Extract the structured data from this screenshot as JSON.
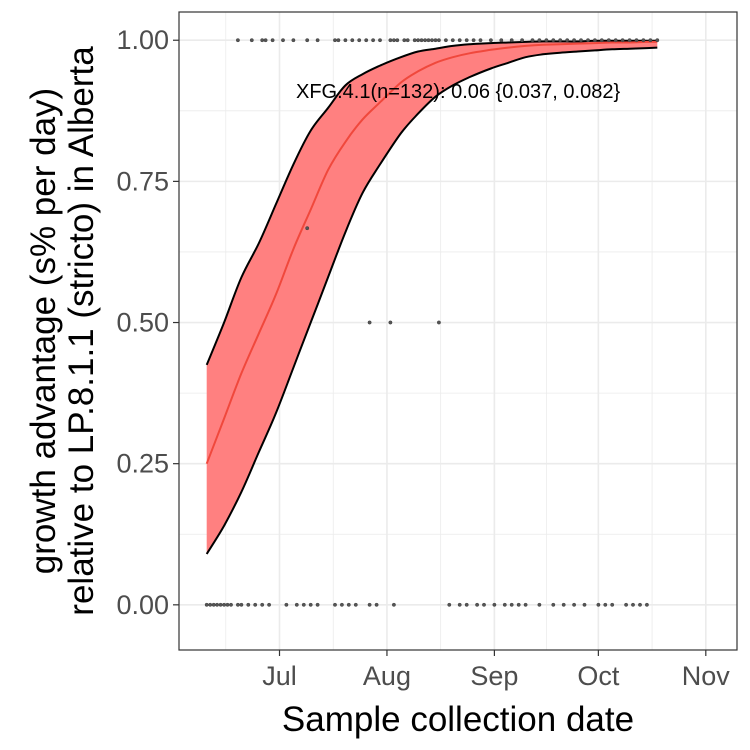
{
  "chart_data": {
    "type": "line",
    "xlabel": "Sample collection date",
    "ylabel_lines": [
      "growth advantage (s% per day)",
      "relative to LP.8.1.1 (stricto) in Alberta"
    ],
    "annotation": "XFG.4.1(n=132): 0.06 {0.037, 0.082}",
    "x_ticks": [
      {
        "label": "Jul",
        "date": "2025-07-01"
      },
      {
        "label": "Aug",
        "date": "2025-08-01"
      },
      {
        "label": "Sep",
        "date": "2025-09-01"
      },
      {
        "label": "Oct",
        "date": "2025-10-01"
      },
      {
        "label": "Nov",
        "date": "2025-11-01"
      }
    ],
    "xlim": [
      "2025-06-02",
      "2025-11-10"
    ],
    "ylim": [
      -0.08,
      1.05
    ],
    "y_ticks": [
      0.0,
      0.25,
      0.5,
      0.75,
      1.0
    ],
    "y_tick_labels": [
      "0.00",
      "0.25",
      "0.50",
      "0.75",
      "1.00"
    ],
    "grid": true,
    "legend": "none",
    "colors": {
      "fit": "#f0483c",
      "ribbon": "#ff8080",
      "ribbon_edge": "#000000",
      "points": "#555555",
      "grid": "#ebebeb"
    },
    "series": [
      {
        "x": [
          "2025-06-10",
          "2025-06-15",
          "2025-06-20",
          "2025-06-25",
          "2025-06-30",
          "2025-07-05",
          "2025-07-10",
          "2025-07-15",
          "2025-07-20",
          "2025-07-25",
          "2025-07-30",
          "2025-08-05",
          "2025-08-10",
          "2025-08-15",
          "2025-08-20",
          "2025-08-25",
          "2025-08-31",
          "2025-09-05",
          "2025-09-10",
          "2025-09-15",
          "2025-09-20",
          "2025-09-25",
          "2025-09-30",
          "2025-10-05",
          "2025-10-10",
          "2025-10-15",
          "2025-10-18"
        ],
        "fit": [
          0.25,
          0.33,
          0.41,
          0.48,
          0.55,
          0.63,
          0.7,
          0.77,
          0.82,
          0.86,
          0.89,
          0.925,
          0.945,
          0.96,
          0.97,
          0.977,
          0.983,
          0.987,
          0.99,
          0.992,
          0.993,
          0.994,
          0.995,
          0.996,
          0.996,
          0.997,
          0.997
        ],
        "upper": [
          0.425,
          0.5,
          0.58,
          0.64,
          0.71,
          0.78,
          0.84,
          0.88,
          0.92,
          0.94,
          0.955,
          0.97,
          0.98,
          0.985,
          0.99,
          0.993,
          0.995,
          0.996,
          0.997,
          0.998,
          0.998,
          0.998,
          0.999,
          0.999,
          0.999,
          0.999,
          0.999
        ],
        "lower": [
          0.09,
          0.14,
          0.2,
          0.27,
          0.34,
          0.42,
          0.5,
          0.58,
          0.66,
          0.73,
          0.78,
          0.835,
          0.87,
          0.9,
          0.92,
          0.935,
          0.95,
          0.96,
          0.97,
          0.975,
          0.978,
          0.98,
          0.982,
          0.984,
          0.985,
          0.986,
          0.987
        ]
      }
    ],
    "points": [
      {
        "date": "2025-06-19",
        "y": 1
      },
      {
        "date": "2025-06-23",
        "y": 1
      },
      {
        "date": "2025-06-26",
        "y": 1
      },
      {
        "date": "2025-06-27",
        "y": 1
      },
      {
        "date": "2025-06-29",
        "y": 1
      },
      {
        "date": "2025-07-02",
        "y": 1
      },
      {
        "date": "2025-07-05",
        "y": 1
      },
      {
        "date": "2025-07-09",
        "y": 1
      },
      {
        "date": "2025-07-12",
        "y": 1
      },
      {
        "date": "2025-07-17",
        "y": 1
      },
      {
        "date": "2025-07-18",
        "y": 1
      },
      {
        "date": "2025-07-20",
        "y": 1
      },
      {
        "date": "2025-07-22",
        "y": 1
      },
      {
        "date": "2025-07-24",
        "y": 1
      },
      {
        "date": "2025-07-26",
        "y": 1
      },
      {
        "date": "2025-07-28",
        "y": 1
      },
      {
        "date": "2025-07-30",
        "y": 1
      },
      {
        "date": "2025-08-02",
        "y": 1
      },
      {
        "date": "2025-08-03",
        "y": 1
      },
      {
        "date": "2025-08-04",
        "y": 1
      },
      {
        "date": "2025-08-06",
        "y": 1
      },
      {
        "date": "2025-08-07",
        "y": 1
      },
      {
        "date": "2025-08-09",
        "y": 1
      },
      {
        "date": "2025-08-10",
        "y": 1
      },
      {
        "date": "2025-08-11",
        "y": 1
      },
      {
        "date": "2025-08-12",
        "y": 1
      },
      {
        "date": "2025-08-13",
        "y": 1
      },
      {
        "date": "2025-08-14",
        "y": 1
      },
      {
        "date": "2025-08-15",
        "y": 1
      },
      {
        "date": "2025-08-16",
        "y": 1
      },
      {
        "date": "2025-08-18",
        "y": 1
      },
      {
        "date": "2025-08-20",
        "y": 1
      },
      {
        "date": "2025-08-22",
        "y": 1
      },
      {
        "date": "2025-08-24",
        "y": 1
      },
      {
        "date": "2025-08-26",
        "y": 1
      },
      {
        "date": "2025-08-28",
        "y": 1
      },
      {
        "date": "2025-08-31",
        "y": 1
      },
      {
        "date": "2025-09-03",
        "y": 1
      },
      {
        "date": "2025-09-06",
        "y": 1
      },
      {
        "date": "2025-09-09",
        "y": 1
      },
      {
        "date": "2025-09-12",
        "y": 1
      },
      {
        "date": "2025-09-14",
        "y": 1
      },
      {
        "date": "2025-09-16",
        "y": 1
      },
      {
        "date": "2025-09-18",
        "y": 1
      },
      {
        "date": "2025-09-20",
        "y": 1
      },
      {
        "date": "2025-09-22",
        "y": 1
      },
      {
        "date": "2025-09-24",
        "y": 1
      },
      {
        "date": "2025-09-26",
        "y": 1
      },
      {
        "date": "2025-09-28",
        "y": 1
      },
      {
        "date": "2025-09-30",
        "y": 1
      },
      {
        "date": "2025-10-02",
        "y": 1
      },
      {
        "date": "2025-10-04",
        "y": 1
      },
      {
        "date": "2025-10-06",
        "y": 1
      },
      {
        "date": "2025-10-08",
        "y": 1
      },
      {
        "date": "2025-10-10",
        "y": 1
      },
      {
        "date": "2025-10-12",
        "y": 1
      },
      {
        "date": "2025-10-14",
        "y": 1
      },
      {
        "date": "2025-10-16",
        "y": 1
      },
      {
        "date": "2025-10-18",
        "y": 1
      },
      {
        "date": "2025-07-09",
        "y": 0.667
      },
      {
        "date": "2025-07-27",
        "y": 0.5
      },
      {
        "date": "2025-08-02",
        "y": 0.5
      },
      {
        "date": "2025-08-16",
        "y": 0.5
      },
      {
        "date": "2025-06-10",
        "y": 0
      },
      {
        "date": "2025-06-11",
        "y": 0
      },
      {
        "date": "2025-06-12",
        "y": 0
      },
      {
        "date": "2025-06-13",
        "y": 0
      },
      {
        "date": "2025-06-14",
        "y": 0
      },
      {
        "date": "2025-06-15",
        "y": 0
      },
      {
        "date": "2025-06-16",
        "y": 0
      },
      {
        "date": "2025-06-17",
        "y": 0
      },
      {
        "date": "2025-06-19",
        "y": 0
      },
      {
        "date": "2025-06-20",
        "y": 0
      },
      {
        "date": "2025-06-22",
        "y": 0
      },
      {
        "date": "2025-06-24",
        "y": 0
      },
      {
        "date": "2025-06-26",
        "y": 0
      },
      {
        "date": "2025-06-28",
        "y": 0
      },
      {
        "date": "2025-07-03",
        "y": 0
      },
      {
        "date": "2025-07-06",
        "y": 0
      },
      {
        "date": "2025-07-08",
        "y": 0
      },
      {
        "date": "2025-07-10",
        "y": 0
      },
      {
        "date": "2025-07-12",
        "y": 0
      },
      {
        "date": "2025-07-17",
        "y": 0
      },
      {
        "date": "2025-07-19",
        "y": 0
      },
      {
        "date": "2025-07-21",
        "y": 0
      },
      {
        "date": "2025-07-23",
        "y": 0
      },
      {
        "date": "2025-07-27",
        "y": 0
      },
      {
        "date": "2025-07-29",
        "y": 0
      },
      {
        "date": "2025-08-03",
        "y": 0
      },
      {
        "date": "2025-08-19",
        "y": 0
      },
      {
        "date": "2025-08-22",
        "y": 0
      },
      {
        "date": "2025-08-24",
        "y": 0
      },
      {
        "date": "2025-08-27",
        "y": 0
      },
      {
        "date": "2025-08-29",
        "y": 0
      },
      {
        "date": "2025-09-01",
        "y": 0
      },
      {
        "date": "2025-09-04",
        "y": 0
      },
      {
        "date": "2025-09-06",
        "y": 0
      },
      {
        "date": "2025-09-08",
        "y": 0
      },
      {
        "date": "2025-09-10",
        "y": 0
      },
      {
        "date": "2025-09-14",
        "y": 0
      },
      {
        "date": "2025-09-18",
        "y": 0
      },
      {
        "date": "2025-09-21",
        "y": 0
      },
      {
        "date": "2025-09-24",
        "y": 0
      },
      {
        "date": "2025-09-27",
        "y": 0
      },
      {
        "date": "2025-10-01",
        "y": 0
      },
      {
        "date": "2025-10-03",
        "y": 0
      },
      {
        "date": "2025-10-05",
        "y": 0
      },
      {
        "date": "2025-10-09",
        "y": 0
      },
      {
        "date": "2025-10-11",
        "y": 0
      },
      {
        "date": "2025-10-13",
        "y": 0
      },
      {
        "date": "2025-10-15",
        "y": 0
      }
    ]
  }
}
